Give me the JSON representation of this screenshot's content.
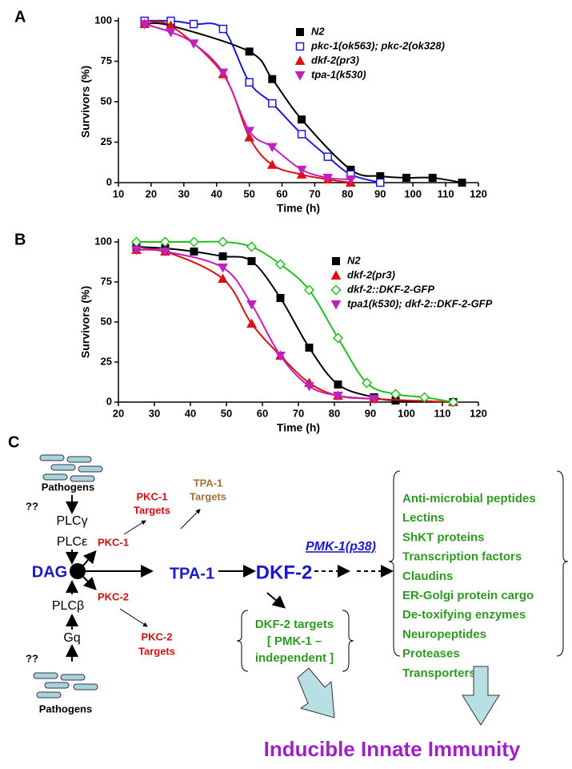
{
  "chart_data": [
    {
      "type": "line",
      "panel": "A",
      "x_label": "Time (h)",
      "y_label": "Survivors (%)",
      "xlim": [
        10,
        120
      ],
      "xticks": [
        10,
        20,
        30,
        40,
        50,
        60,
        70,
        80,
        90,
        100,
        110,
        120
      ],
      "ylim": [
        0,
        100
      ],
      "yticks": [
        0,
        25,
        50,
        75,
        100
      ],
      "series": [
        {
          "name": "N2",
          "color": "#000000",
          "marker": "square",
          "x": [
            18,
            26,
            50,
            57,
            66,
            81,
            90,
            98,
            106,
            115
          ],
          "values": [
            98,
            97,
            81,
            64,
            39,
            8,
            4,
            3,
            3,
            0
          ]
        },
        {
          "name": "pkc-1(ok563); pkc-2(ok328)",
          "color": "#1a1ad6",
          "marker": "square-open",
          "x": [
            18,
            26,
            33,
            42,
            50,
            57,
            66,
            74,
            81,
            90
          ],
          "values": [
            100,
            100,
            98,
            95,
            62,
            49,
            30,
            16,
            5,
            0
          ]
        },
        {
          "name": "dkf-2(pr3)",
          "color": "#e01010",
          "marker": "triangle",
          "x": [
            18,
            26,
            42,
            50,
            57,
            66,
            74,
            81
          ],
          "values": [
            98,
            97,
            67,
            28,
            11,
            5,
            2,
            0
          ]
        },
        {
          "name": "tpa-1(k530)",
          "color": "#c020c0",
          "marker": "triangle-down",
          "x": [
            18,
            26,
            33,
            42,
            50,
            57,
            66,
            74,
            81
          ],
          "values": [
            98,
            93,
            86,
            68,
            32,
            22,
            8,
            3,
            2
          ]
        }
      ]
    },
    {
      "type": "line",
      "panel": "B",
      "x_label": "Time (h)",
      "y_label": "Survivors (%)",
      "xlim": [
        20,
        120
      ],
      "xticks": [
        20,
        30,
        40,
        50,
        60,
        70,
        80,
        90,
        100,
        110,
        120
      ],
      "ylim": [
        0,
        100
      ],
      "yticks": [
        0,
        25,
        50,
        75,
        100
      ],
      "series": [
        {
          "name": "N2",
          "color": "#000000",
          "marker": "square",
          "x": [
            25,
            33,
            41,
            49,
            57,
            65,
            73,
            81,
            91,
            97,
            113
          ],
          "values": [
            97,
            96,
            94,
            91,
            88,
            65,
            34,
            11,
            3,
            1,
            0
          ]
        },
        {
          "name": "dkf-2(pr3)",
          "color": "#e01010",
          "marker": "triangle",
          "x": [
            25,
            33,
            49,
            57,
            65,
            73,
            81,
            91,
            113
          ],
          "values": [
            95,
            94,
            77,
            49,
            29,
            12,
            4,
            2,
            0
          ]
        },
        {
          "name": "dkf-2::DKF-2-GFP",
          "color": "#20c020",
          "marker": "diamond-open",
          "x": [
            25,
            33,
            41,
            49,
            57,
            65,
            73,
            81,
            89,
            97,
            105,
            113
          ],
          "values": [
            100,
            100,
            100,
            100,
            97,
            86,
            70,
            40,
            12,
            5,
            3,
            0
          ]
        },
        {
          "name": "tpa1(k530); dkf-2::DKF-2-GFP",
          "color": "#c020c0",
          "marker": "triangle-down",
          "x": [
            25,
            33,
            49,
            57,
            65,
            73,
            81,
            91
          ],
          "values": [
            95,
            94,
            84,
            61,
            29,
            10,
            4,
            2
          ]
        }
      ]
    }
  ],
  "diagram": {
    "panel": "C",
    "pathogens_top": "Pathogens",
    "pathogens_bottom": "Pathogens",
    "unknown_top": "??",
    "unknown_bottom": "??",
    "plc_gamma": "PLCγ",
    "plc_epsilon": "PLCε",
    "dag": "DAG",
    "plc_beta": "PLCβ",
    "gq": "Gq",
    "pkc1": "PKC-1",
    "pkc2": "PKC-2",
    "pkc1_targets": [
      "PKC-1",
      "Targets"
    ],
    "tpa1_targets": [
      "TPA-1",
      "Targets"
    ],
    "pkc2_targets": [
      "PKC-2",
      "Targets"
    ],
    "tpa1": "TPA-1",
    "dkf2": "DKF-2",
    "pmk1": "PMK-1(p38)",
    "dkf2_targets": [
      "DKF-2 targets",
      "[ PMK-1 –",
      "independent ]"
    ],
    "effectors": [
      "Anti-microbial peptides",
      "Lectins",
      "ShKT proteins",
      "Transcription factors",
      "Claudins",
      "ER-Golgi protein cargo",
      "De-toxifying enzymes",
      "Neuropeptides",
      "Proteases",
      "Transporters"
    ],
    "outcome": "Inducible Innate Immunity"
  }
}
